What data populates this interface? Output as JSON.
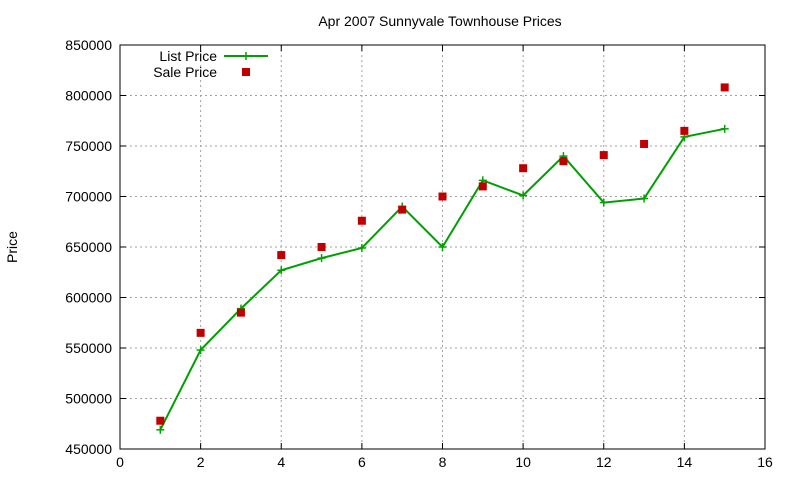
{
  "chart_data": {
    "type": "line",
    "title": "Apr 2007 Sunnyvale Townhouse Prices",
    "xlabel": "",
    "ylabel": "Price",
    "xlim": [
      0,
      16
    ],
    "ylim": [
      450000,
      850000
    ],
    "xticks": [
      0,
      2,
      4,
      6,
      8,
      10,
      12,
      14,
      16
    ],
    "yticks": [
      450000,
      500000,
      550000,
      600000,
      650000,
      700000,
      750000,
      800000,
      850000
    ],
    "grid": true,
    "legend_position": "top-left",
    "series": [
      {
        "name": "List Price",
        "style": "line+cross",
        "color": "#00a000",
        "x": [
          1,
          2,
          3,
          4,
          5,
          6,
          7,
          8,
          9,
          10,
          11,
          12,
          13,
          14,
          15
        ],
        "values": [
          469000,
          548000,
          589000,
          627000,
          639000,
          649000,
          690000,
          650000,
          716000,
          701000,
          740000,
          694000,
          698000,
          759000,
          767000
        ]
      },
      {
        "name": "Sale Price",
        "style": "square",
        "color": "#c00000",
        "x": [
          1,
          2,
          3,
          4,
          5,
          6,
          7,
          8,
          9,
          10,
          11,
          12,
          13,
          14,
          15
        ],
        "values": [
          478000,
          565000,
          585000,
          642000,
          650000,
          676000,
          687000,
          700000,
          710000,
          728000,
          735000,
          741000,
          752000,
          765000,
          808000
        ]
      }
    ]
  }
}
